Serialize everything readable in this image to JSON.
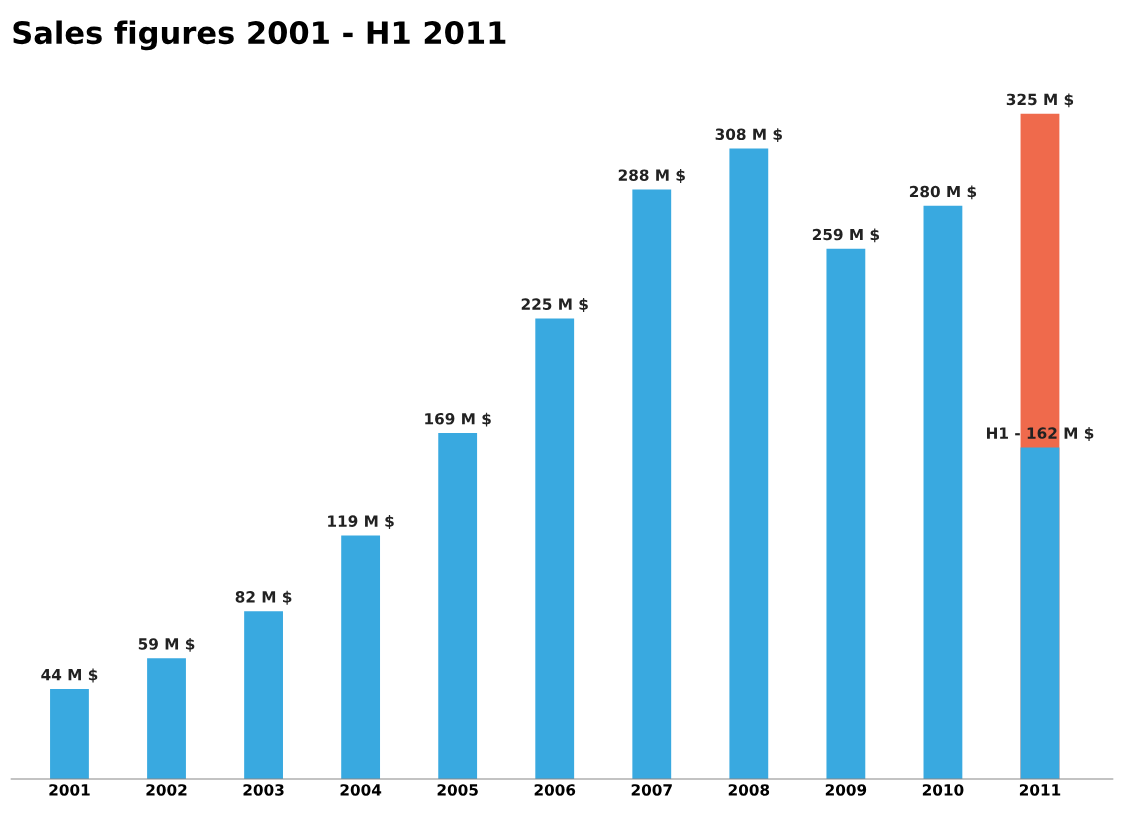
{
  "chart_data": {
    "type": "bar",
    "title": "Sales figures 2001 - H1 2011",
    "categories": [
      "2001",
      "2002",
      "2003",
      "2004",
      "2005",
      "2006",
      "2007",
      "2008",
      "2009",
      "2010",
      "2011"
    ],
    "series": [
      {
        "color": "#ef6a4c",
        "values": [
          null,
          null,
          null,
          null,
          null,
          null,
          null,
          null,
          null,
          null,
          325
        ],
        "value_labels": [
          null,
          null,
          null,
          null,
          null,
          null,
          null,
          null,
          null,
          null,
          "325 M $"
        ]
      },
      {
        "color": "#39a9e0",
        "values": [
          44,
          59,
          82,
          119,
          169,
          225,
          288,
          308,
          259,
          280,
          162
        ],
        "value_labels": [
          "44 M $",
          "59 M $",
          "82 M $",
          "119 M $",
          "169 M $",
          "225 M $",
          "288 M $",
          "308 M $",
          "259 M $",
          "280 M $",
          "H1 - 162 M $"
        ]
      }
    ],
    "stacked": false,
    "grid": false,
    "legend": false,
    "tick_labels": "x"
  }
}
